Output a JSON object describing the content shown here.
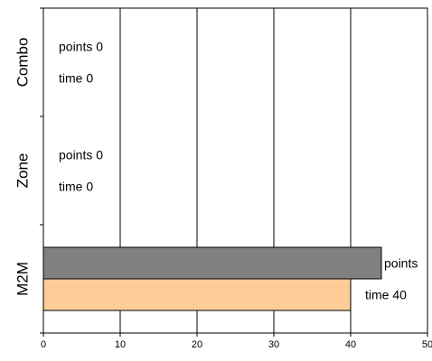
{
  "chart_data": {
    "type": "bar",
    "orientation": "horizontal",
    "categories": [
      "M2M",
      "Zone",
      "Combo"
    ],
    "series": [
      {
        "values": [
          44,
          0,
          0
        ],
        "color": "#808080"
      },
      {
        "values": [
          40,
          0,
          0
        ],
        "color": "#FFCC99"
      }
    ],
    "data_labels": {
      "M2M": {
        "points": "points",
        "time": "time 40"
      },
      "Zone": {
        "points": "points 0",
        "time": "time 0"
      },
      "Combo": {
        "points": "points 0",
        "time": "time 0"
      }
    },
    "xlim": [
      0,
      50
    ],
    "x_ticks": [
      "0",
      "10",
      "20",
      "30",
      "40",
      "50"
    ],
    "grid": "vertical",
    "legend": "none",
    "plot_border_color": "#000000"
  }
}
